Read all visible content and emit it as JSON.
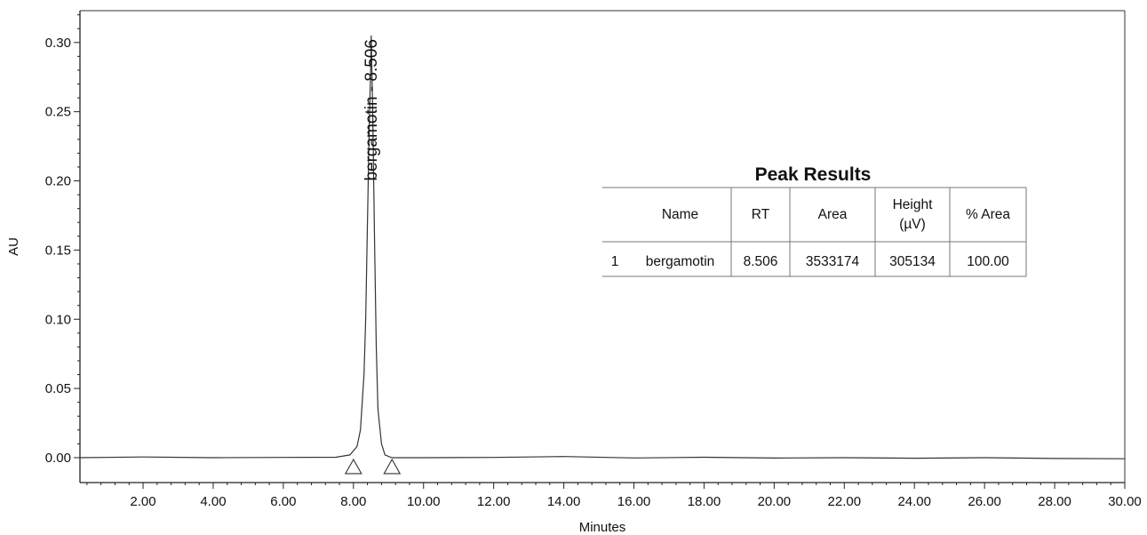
{
  "chart_data": {
    "type": "line",
    "xlabel": "Minutes",
    "ylabel": "AU",
    "xlim": [
      0.2,
      30.0
    ],
    "ylim": [
      -0.018,
      0.323
    ],
    "xticks": [
      "2.00",
      "4.00",
      "6.00",
      "8.00",
      "10.00",
      "12.00",
      "14.00",
      "16.00",
      "18.00",
      "20.00",
      "22.00",
      "24.00",
      "26.00",
      "28.00",
      "30.00"
    ],
    "xtick_values": [
      2,
      4,
      6,
      8,
      10,
      12,
      14,
      16,
      18,
      20,
      22,
      24,
      26,
      28,
      30
    ],
    "yticks": [
      "0.00",
      "0.05",
      "0.10",
      "0.15",
      "0.20",
      "0.25",
      "0.30"
    ],
    "ytick_values": [
      0.0,
      0.05,
      0.1,
      0.15,
      0.2,
      0.25,
      0.3
    ],
    "grid": false,
    "series": [
      {
        "x": [
          0.2,
          2.0,
          4.0,
          6.0,
          7.5,
          7.9,
          8.1,
          8.2,
          8.3,
          8.35,
          8.4,
          8.45,
          8.5,
          8.506,
          8.55,
          8.6,
          8.65,
          8.7,
          8.8,
          8.9,
          9.1,
          10.0,
          12.0,
          14.0,
          16.0,
          18.0,
          20.0,
          22.0,
          24.0,
          26.0,
          28.0,
          30.0
        ],
        "y": [
          0.0,
          0.0005,
          0.0,
          0.0002,
          0.0003,
          0.002,
          0.008,
          0.02,
          0.06,
          0.1,
          0.17,
          0.24,
          0.29,
          0.305,
          0.25,
          0.16,
          0.08,
          0.035,
          0.01,
          0.002,
          0.0,
          0.0,
          0.0002,
          0.0008,
          -0.0002,
          0.0003,
          -0.0003,
          0.0,
          -0.0004,
          0.0,
          -0.0006,
          -0.0008
        ]
      }
    ],
    "annotations": [
      {
        "text": "bergamotin - 8.506",
        "x": 8.506,
        "y": 0.305
      }
    ],
    "baseline_markers": [
      8.0,
      9.1
    ]
  },
  "peak_table": {
    "title": "Peak Results",
    "headers": [
      "",
      "Name",
      "RT",
      "Area",
      "Height (µV)",
      "% Area"
    ],
    "height_header_lines": [
      "Height",
      "(µV)"
    ],
    "rows": [
      [
        "1",
        "bergamotin",
        "8.506",
        "3533174",
        "305134",
        "100.00"
      ]
    ]
  }
}
